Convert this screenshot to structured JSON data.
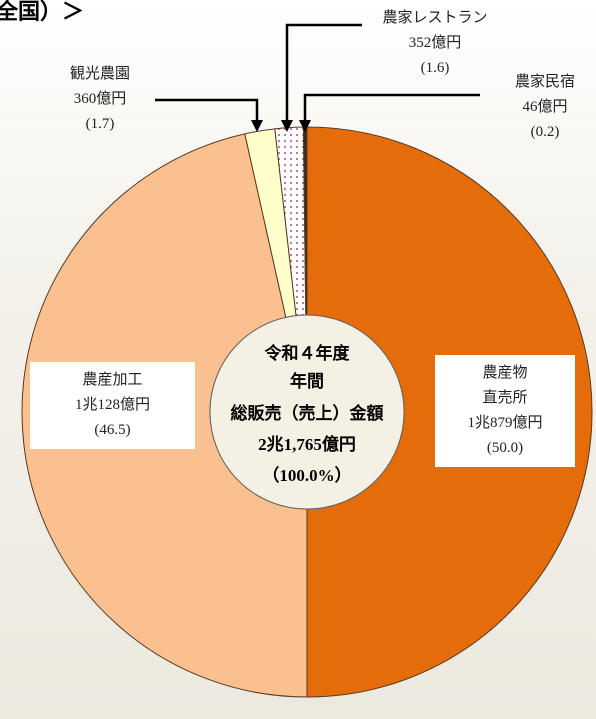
{
  "chart_data": {
    "type": "pie",
    "title": "全国）＞",
    "categories": [
      "農産物直売所",
      "農産加工",
      "観光農園",
      "農家レストラン",
      "農家民宿"
    ],
    "values": [
      50.0,
      46.5,
      1.7,
      1.6,
      0.2
    ],
    "value_labels": [
      "(50.0)",
      "(46.5)",
      "(1.7)",
      "(1.6)",
      "(0.2)"
    ],
    "amounts": [
      10879,
      10128,
      360,
      352,
      46
    ],
    "amount_labels": [
      "1兆879億円",
      "1兆128億円",
      "360億円",
      "352億円",
      "46億円"
    ],
    "colors": [
      "#e46c0a",
      "#fac090",
      "#ffffcc",
      "dots",
      "#3a2a20"
    ],
    "center_text": [
      "令和４年度",
      "年間",
      "総販売（売上）金額",
      "2兆1,765億円",
      "（100.0%）"
    ]
  }
}
